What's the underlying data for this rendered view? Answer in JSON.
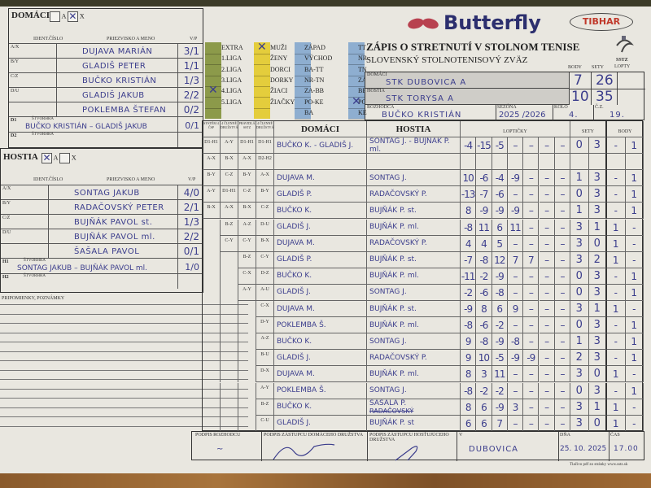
{
  "logos": {
    "butterfly": "Butterfly",
    "tibhar": "TIBHAR",
    "sstz": "SSTZ"
  },
  "title": {
    "main": "ZÁPIS O STRETNUTÍ V STOLNOM TENISE",
    "org": "SLOVENSKÝ STOLNOTENISOVÝ ZVÄZ"
  },
  "home_team": {
    "label": "DOMÁCI",
    "opt_a": "A",
    "opt_x": "X",
    "selected": "X",
    "col_id": "IDENT.ČÍSLO",
    "col_name": "PRIEZVISKO A MENO",
    "col_vp": "V/P",
    "players": [
      {
        "code": "A/X",
        "name": "DUJAVA   MARIÁN",
        "vp": "3/1"
      },
      {
        "code": "B/Y",
        "name": "GLADIŠ   PETER",
        "vp": "1/1"
      },
      {
        "code": "C/Z",
        "name": "BUČKO   KRISTIÁN",
        "vp": "1/3"
      },
      {
        "code": "D/U",
        "name": "GLADIŠ   JAKUB",
        "vp": "2/2"
      },
      {
        "code": "",
        "name": "POKLEMBA   ŠTEFAN",
        "vp": "0/2"
      }
    ],
    "doubles": [
      {
        "code": "D1",
        "label": "ŠTVORHRA",
        "name": "BUČKO  KRISTIÁN  –  GLADIŠ  JAKUB",
        "vp": "0/1"
      },
      {
        "code": "D2",
        "label": "ŠTVORHRA",
        "name": "",
        "vp": ""
      }
    ]
  },
  "away_team": {
    "label": "HOSTIA",
    "opt_a": "A",
    "opt_x": "X",
    "selected": "A",
    "col_id": "IDENT.ČÍSLO",
    "col_name": "PRIEZVISKO A MENO",
    "col_vp": "V/P",
    "players": [
      {
        "code": "A/X",
        "name": "SONTAG   JAKUB",
        "vp": "4/0"
      },
      {
        "code": "B/Y",
        "name": "RADAČOVSKÝ   PETER",
        "vp": "2/1"
      },
      {
        "code": "C/Z",
        "name": "BUJŇÁK   PAVOL   st.",
        "vp": "1/3"
      },
      {
        "code": "D/U",
        "name": "BUJŇÁK   PAVOL   ml.",
        "vp": "2/2"
      },
      {
        "code": "",
        "name": "ŠAŠALA   PAVOL",
        "vp": "0/1"
      }
    ],
    "doubles": [
      {
        "code": "H1",
        "label": "ŠTVORHRA",
        "name": "SONTAG  JAKUB – BUJŇÁK  PAVOL  ml.",
        "vp": "1/0"
      },
      {
        "code": "H2",
        "label": "ŠTVORHRA",
        "name": "",
        "vp": ""
      }
    ]
  },
  "categories": {
    "league": {
      "color": "#8c9a4a",
      "items": [
        "EXTRA",
        "1.LIGA",
        "2.LIGA",
        "3.LIGA",
        "4.LIGA",
        "5.LIGA"
      ],
      "checked": "4.LIGA"
    },
    "gender": {
      "color": "#e4cd3c",
      "items": [
        "MUŽI",
        "ŽENY",
        "DORCI",
        "DORKY",
        "ŽIACI",
        "ŽIAČKY"
      ],
      "checked": "MUŽI"
    },
    "region": {
      "color": "#8eaed0",
      "items": [
        "ZÁPAD",
        "VÝCHOD",
        "BA-TT",
        "NR-TN",
        "ZA-BB",
        "PO-KE",
        "BA"
      ],
      "checked": ""
    },
    "district": {
      "color": "#8eaed0",
      "items": [
        "TT",
        "NR",
        "TN",
        "ZA",
        "BB",
        "PO",
        "KE"
      ],
      "checked": "PO"
    }
  },
  "summary": {
    "body_label": "BODY",
    "sety_label": "SETY",
    "lopty_label": "LOPTY",
    "home_label": "DOMÁCI",
    "home": "STK   DUBOVICA   A",
    "home_body": "7",
    "home_sety": "26",
    "away_label": "HOSTIA",
    "away": "STK   TORYSA   A",
    "away_body": "10",
    "away_sety": "35",
    "referee_label": "ROZHODCA",
    "referee": "BUČKO   KRISTIÁN",
    "season_label": "SEZÓNA",
    "season": "2025 /2026",
    "round_label": "KOLO",
    "round": "4.",
    "no_label": "Č.Z.",
    "no": "19."
  },
  "matches": {
    "sys_headers": [
      "SYSTÉM 4 ČSP",
      "4 ČLENNÉ DRUŽSTVÁ",
      "PRAVIDLÁ SSTZ",
      "4 ČLENNÉ DRUŽSTVÁ"
    ],
    "home_header": "DOMÁCI",
    "away_header": "HOSTIA",
    "balls_header": "LOPTIČKY",
    "sets_header": "SETY",
    "points_header": "BODY",
    "rows": [
      {
        "sys": [
          "D1-H1",
          "A-Y",
          "D1-H1",
          "D1-H1"
        ],
        "home": "BUČKO K. - GLADIŠ J.",
        "away": "SONTAG J. - BUJŇÁK P. ml.",
        "balls": [
          "-4",
          "-15",
          "-5",
          "–",
          "–",
          "–",
          "–"
        ],
        "sets": [
          "0",
          "3"
        ],
        "points": [
          "-",
          "1"
        ]
      },
      {
        "sys": [
          "A-X",
          "B-X",
          "A-X",
          "D2-H2"
        ],
        "home": "",
        "away": "",
        "balls": [
          "",
          "",
          "",
          "",
          "",
          "",
          ""
        ],
        "sets": [
          "",
          ""
        ],
        "points": [
          "",
          ""
        ]
      },
      {
        "sys": [
          "B-Y",
          "C-Z",
          "B-Y",
          "A-X"
        ],
        "home": "DUJAVA  M.",
        "away": "SONTAG J.",
        "balls": [
          "10",
          "-6",
          "-4",
          "-9",
          "–",
          "–",
          "–"
        ],
        "sets": [
          "1",
          "3"
        ],
        "points": [
          "-",
          "1"
        ]
      },
      {
        "sys": [
          "A-Y",
          "D1-H1",
          "C-Z",
          "B-Y"
        ],
        "home": "GLADIŠ  P.",
        "away": "RADAČOVSKÝ P.",
        "balls": [
          "-13",
          "-7",
          "-6",
          "–",
          "–",
          "–",
          "–"
        ],
        "sets": [
          "0",
          "3"
        ],
        "points": [
          "-",
          "1"
        ]
      },
      {
        "sys": [
          "B-X",
          "A-X",
          "B-X",
          "C-Z"
        ],
        "home": "BUČKO  K.",
        "away": "BUJŇÁK P. st.",
        "balls": [
          "8",
          "-9",
          "-9",
          "-9",
          "–",
          "–",
          "–"
        ],
        "sets": [
          "1",
          "3"
        ],
        "points": [
          "-",
          "1"
        ]
      },
      {
        "sys": [
          "",
          "B-Z",
          "A-Z",
          "D-U"
        ],
        "home": "GLADIŠ  J.",
        "away": "BUJŇÁK P. ml.",
        "balls": [
          "-8",
          "11",
          "6",
          "11",
          "–",
          "–",
          "–"
        ],
        "sets": [
          "3",
          "1"
        ],
        "points": [
          "1",
          "-"
        ]
      },
      {
        "sys": [
          "",
          "C-Y",
          "C-Y",
          "B-X"
        ],
        "home": "DUJAVA  M.",
        "away": "RADAČOVSKÝ P.",
        "balls": [
          "4",
          "4",
          "5",
          "–",
          "–",
          "–",
          "–"
        ],
        "sets": [
          "3",
          "0"
        ],
        "points": [
          "1",
          "-"
        ]
      },
      {
        "sys": [
          "",
          "",
          "B-Z",
          "C-Y"
        ],
        "home": "GLADIŠ  P.",
        "away": "BUJŇÁK P. st.",
        "balls": [
          "-7",
          "-8",
          "12",
          "7",
          "7",
          "–",
          "–"
        ],
        "sets": [
          "3",
          "2"
        ],
        "points": [
          "1",
          "-"
        ]
      },
      {
        "sys": [
          "",
          "",
          "C-X",
          "D-Z"
        ],
        "home": "BUČKO  K.",
        "away": "BUJŇÁK P. ml.",
        "balls": [
          "-11",
          "-2",
          "-9",
          "–",
          "–",
          "–",
          "–"
        ],
        "sets": [
          "0",
          "3"
        ],
        "points": [
          "-",
          "1"
        ]
      },
      {
        "sys": [
          "",
          "",
          "A-Y",
          "A-U"
        ],
        "home": "GLADIŠ  J.",
        "away": "SONTAG J.",
        "balls": [
          "-2",
          "-6",
          "-8",
          "–",
          "–",
          "–",
          "–"
        ],
        "sets": [
          "0",
          "3"
        ],
        "points": [
          "-",
          "1"
        ]
      },
      {
        "sys": [
          "",
          "",
          "",
          "C-X"
        ],
        "home": "DUJAVA  M.",
        "away": "BUJŇÁK P. st.",
        "balls": [
          "-9",
          "8",
          "6",
          "9",
          "–",
          "–",
          "–"
        ],
        "sets": [
          "3",
          "1"
        ],
        "points": [
          "1",
          "-"
        ]
      },
      {
        "sys": [
          "",
          "",
          "",
          "D-Y"
        ],
        "home": "POKLEMBA  Š.",
        "away": "BUJŇÁK P. ml.",
        "balls": [
          "-8",
          "-6",
          "-2",
          "–",
          "–",
          "–",
          "–"
        ],
        "sets": [
          "0",
          "3"
        ],
        "points": [
          "-",
          "1"
        ]
      },
      {
        "sys": [
          "",
          "",
          "",
          "A-Z"
        ],
        "home": "BUČKO  K.",
        "away": "SONTAG J.",
        "balls": [
          "9",
          "-8",
          "-9",
          "-8",
          "–",
          "–",
          "–"
        ],
        "sets": [
          "1",
          "3"
        ],
        "points": [
          "-",
          "1"
        ]
      },
      {
        "sys": [
          "",
          "",
          "",
          "B-U"
        ],
        "home": "GLADIŠ  J.",
        "away": "RADAČOVSKÝ P.",
        "balls": [
          "9",
          "10",
          "-5",
          "-9",
          "-9",
          "–",
          "–"
        ],
        "sets": [
          "2",
          "3"
        ],
        "points": [
          "-",
          "1"
        ]
      },
      {
        "sys": [
          "",
          "",
          "",
          "D-X"
        ],
        "home": "DUJAVA  M.",
        "away": "BUJŇÁK P. ml.",
        "balls": [
          "8",
          "3",
          "11",
          "–",
          "–",
          "–",
          "–"
        ],
        "sets": [
          "3",
          "0"
        ],
        "points": [
          "1",
          "-"
        ]
      },
      {
        "sys": [
          "",
          "",
          "",
          "A-Y"
        ],
        "home": "POKLEMBA  Š.",
        "away": "SONTAG J.",
        "balls": [
          "-8",
          "-2",
          "-2",
          "–",
          "–",
          "–",
          "–"
        ],
        "sets": [
          "0",
          "3"
        ],
        "points": [
          "-",
          "1"
        ]
      },
      {
        "sys": [
          "",
          "",
          "",
          "B-Z"
        ],
        "home": "BUČKO  K.",
        "away": "ŠAŠALA P.",
        "away_struck": "RADAČOVSKÝ",
        "balls": [
          "8",
          "6",
          "-9",
          "3",
          "–",
          "–",
          "–"
        ],
        "sets": [
          "3",
          "1"
        ],
        "points": [
          "1",
          "-"
        ]
      },
      {
        "sys": [
          "",
          "",
          "",
          "C-U"
        ],
        "home": "GLADIŠ  J.",
        "away": "BUJŇÁK P. st",
        "balls": [
          "6",
          "6",
          "7",
          "–",
          "–",
          "–",
          "–"
        ],
        "sets": [
          "3",
          "0"
        ],
        "points": [
          "1",
          "-"
        ]
      }
    ]
  },
  "notes": {
    "label": "PRIPOMIENKY, POZNÁMKY"
  },
  "footer": {
    "ref_sig_label": "PODPIS ROZHODCU",
    "home_sig_label": "PODPIS ZÁSTUPCU DOMÁCEHO DRUŽSTVA",
    "away_sig_label": "PODPIS ZÁSTUPCU HOSŤUJÚCEHO DRUŽSTVA",
    "place_label": "V",
    "place": "DUBOVICA",
    "date_label": "DŇA",
    "date": "25. 10. 2025",
    "time_label": "ČAS",
    "time": "17.00",
    "print_note": "Tlačivo pdf zo stránky www.sstz.sk"
  }
}
